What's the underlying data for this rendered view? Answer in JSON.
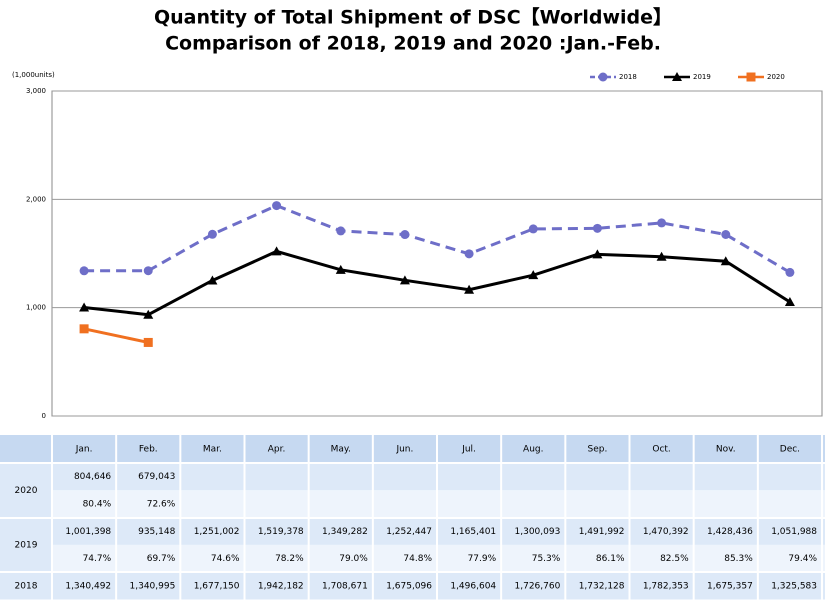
{
  "chart_data": {
    "type": "line",
    "title": "Quantity of Total Shipment of DSC【Worldwide】",
    "subtitle": "Comparison of 2018, 2019 and 2020 :Jan.-Feb.",
    "y_label": "(1,000units)",
    "categories": [
      "Jan.",
      "Feb.",
      "Mar.",
      "Apr.",
      "May.",
      "Jun.",
      "Jul.",
      "Aug.",
      "Sep.",
      "Oct.",
      "Nov.",
      "Dec."
    ],
    "ylim": [
      0,
      3000
    ],
    "yticks": [
      0,
      {
        "value": 1000,
        "label": "1,000"
      },
      {
        "value": 2000,
        "label": "2,000"
      },
      {
        "value": 3000,
        "label": "3,000"
      }
    ],
    "grid": true,
    "legend": "top-right",
    "series": [
      {
        "name": "2018",
        "color": "#6e6ec8",
        "dash": true,
        "marker": "circle",
        "values": [
          1340.492,
          1340.995,
          1677.15,
          1942.182,
          1708.671,
          1675.096,
          1496.604,
          1726.76,
          1732.128,
          1782.353,
          1675.357,
          1325.583
        ]
      },
      {
        "name": "2019",
        "color": "#000000",
        "dash": false,
        "marker": "triangle",
        "values": [
          1001.398,
          935.148,
          1251.002,
          1519.378,
          1349.282,
          1252.447,
          1165.401,
          1300.093,
          1491.992,
          1470.392,
          1428.436,
          1051.988
        ]
      },
      {
        "name": "2020",
        "color": "#f07020",
        "dash": false,
        "marker": "square",
        "values": [
          804.646,
          679.043,
          null,
          null,
          null,
          null,
          null,
          null,
          null,
          null,
          null,
          null
        ]
      }
    ]
  },
  "table": {
    "columns": [
      "Jan.",
      "Feb.",
      "Mar.",
      "Apr.",
      "May.",
      "Jun.",
      "Jul.",
      "Aug.",
      "Sep.",
      "Oct.",
      "Nov.",
      "Dec."
    ],
    "rows": [
      {
        "year": "2020",
        "values": [
          "804,646",
          "679,043"
        ],
        "shares": [
          "80.4%",
          "72.6%"
        ]
      },
      {
        "year": "2019",
        "values": [
          "1,001,398",
          "935,148",
          "1,251,002",
          "1,519,378",
          "1,349,282",
          "1,252,447",
          "1,165,401",
          "1,300,093",
          "1,491,992",
          "1,470,392",
          "1,428,436",
          "1,051,988"
        ],
        "shares": [
          "74.7%",
          "69.7%",
          "74.6%",
          "78.2%",
          "79.0%",
          "74.8%",
          "77.9%",
          "75.3%",
          "86.1%",
          "82.5%",
          "85.3%",
          "79.4%"
        ]
      },
      {
        "year": "2018",
        "values": [
          "1,340,492",
          "1,340,995",
          "1,677,150",
          "1,942,182",
          "1,708,671",
          "1,675,096",
          "1,496,604",
          "1,726,760",
          "1,732,128",
          "1,782,353",
          "1,675,357",
          "1,325,583"
        ]
      }
    ]
  }
}
